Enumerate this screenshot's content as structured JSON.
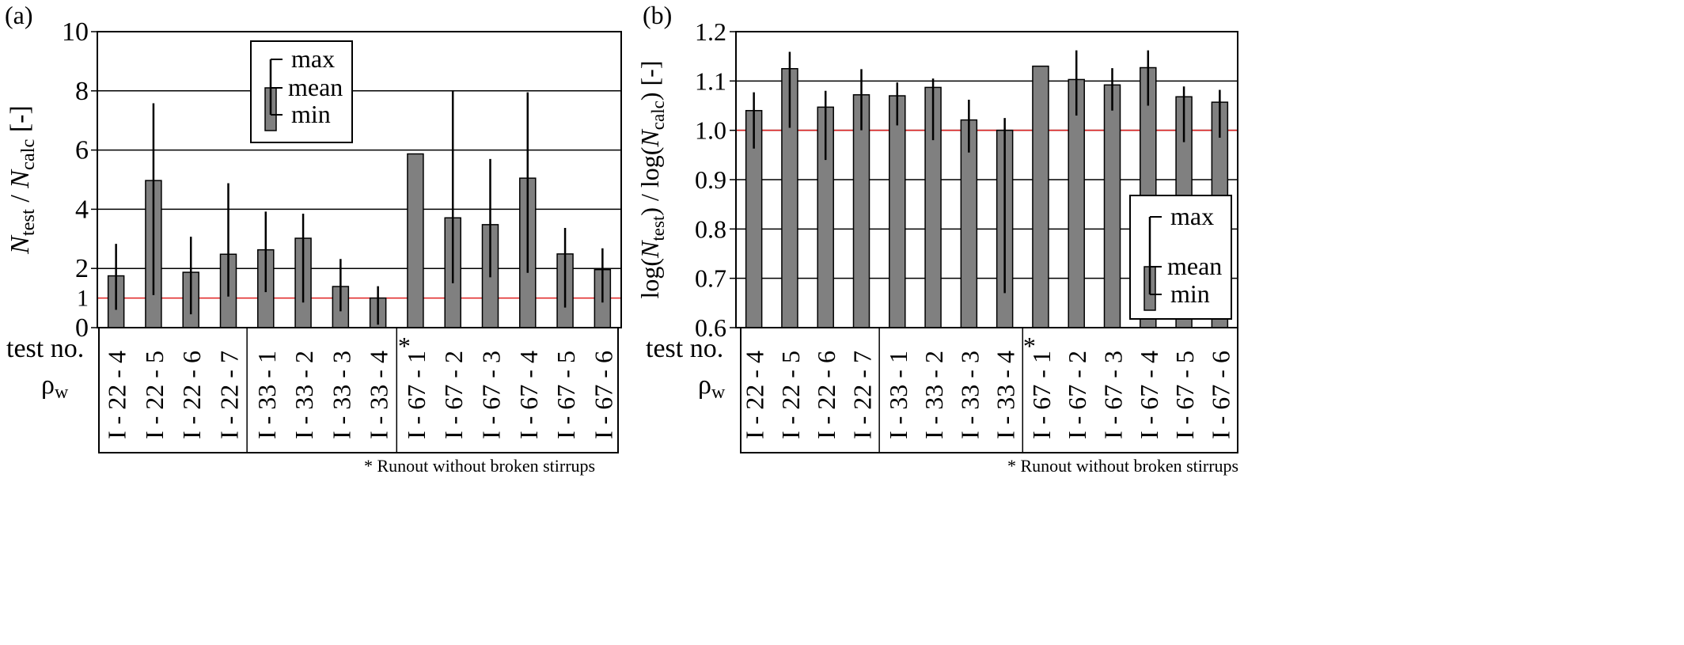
{
  "tests": [
    "I - 22 - 4",
    "I - 22 - 5",
    "I - 22 - 6",
    "I - 22 - 7",
    "I - 33 - 1",
    "I - 33 - 2",
    "I - 33 - 3",
    "I - 33 - 4",
    "I - 67 - 1",
    "I - 67 - 2",
    "I - 67 - 3",
    "I - 67 - 4",
    "I - 67 - 5",
    "I - 67 - 6"
  ],
  "runout_index": 8,
  "labels": {
    "test_no": "test no.",
    "rho_main": "ρ",
    "rho_sub": "w",
    "asterisk": "*",
    "footnote": "* Runout without broken stirrups"
  },
  "legend": {
    "max": "max",
    "mean": "mean",
    "min": "min"
  },
  "colors": {
    "bar": "#808080",
    "reference": "#e02020",
    "reference_text": "#e02020"
  },
  "chart_data": [
    {
      "type": "bar",
      "panel_label": "(a)",
      "ylabel_parts": [
        "N",
        "test",
        " / ",
        "N",
        "calc",
        " [-]"
      ],
      "ylim": [
        0,
        10
      ],
      "yticks": [
        0,
        2,
        4,
        6,
        8,
        10
      ],
      "reference": 1,
      "reference_label": "1",
      "legend_position": "top-center",
      "categories": [
        "I - 22 - 4",
        "I - 22 - 5",
        "I - 22 - 6",
        "I - 22 - 7",
        "I - 33 - 1",
        "I - 33 - 2",
        "I - 33 - 3",
        "I - 33 - 4",
        "I - 67 - 1",
        "I - 67 - 2",
        "I - 67 - 3",
        "I - 67 - 4",
        "I - 67 - 5",
        "I - 67 - 6"
      ],
      "mean": [
        1.75,
        4.97,
        1.87,
        2.48,
        2.63,
        3.02,
        1.39,
        1.0,
        5.87,
        3.71,
        3.48,
        5.05,
        2.49,
        1.96
      ],
      "min": [
        0.6,
        1.1,
        0.45,
        1.05,
        1.2,
        0.85,
        0.55,
        0.1,
        null,
        1.5,
        1.7,
        1.85,
        0.68,
        0.85
      ],
      "max": [
        2.83,
        7.58,
        3.07,
        4.88,
        3.92,
        3.85,
        2.32,
        1.4,
        null,
        8.02,
        5.7,
        7.95,
        3.37,
        2.68
      ]
    },
    {
      "type": "bar",
      "panel_label": "(b)",
      "ylabel_parts": [
        "log(",
        "N",
        "test",
        ") / log(",
        "N",
        "calc",
        ") [-]"
      ],
      "ylim": [
        0.6,
        1.2
      ],
      "yticks": [
        0.6,
        0.7,
        0.8,
        0.9,
        1.0,
        1.1,
        1.2
      ],
      "reference": 1.0,
      "reference_label": "1.0",
      "legend_position": "bottom-right",
      "categories": [
        "I - 22 - 4",
        "I - 22 - 5",
        "I - 22 - 6",
        "I - 22 - 7",
        "I - 33 - 1",
        "I - 33 - 2",
        "I - 33 - 3",
        "I - 33 - 4",
        "I - 67 - 1",
        "I - 67 - 2",
        "I - 67 - 3",
        "I - 67 - 4",
        "I - 67 - 5",
        "I - 67 - 6"
      ],
      "mean": [
        1.04,
        1.125,
        1.047,
        1.072,
        1.07,
        1.087,
        1.021,
        1.0,
        1.13,
        1.103,
        1.092,
        1.127,
        1.068,
        1.057
      ],
      "min": [
        0.963,
        1.005,
        0.94,
        1.0,
        1.01,
        0.98,
        0.955,
        0.67,
        null,
        1.03,
        1.04,
        1.05,
        0.976,
        0.985
      ],
      "max": [
        1.077,
        1.159,
        1.08,
        1.124,
        1.097,
        1.105,
        1.062,
        1.025,
        null,
        1.162,
        1.126,
        1.162,
        1.089,
        1.082
      ]
    }
  ]
}
